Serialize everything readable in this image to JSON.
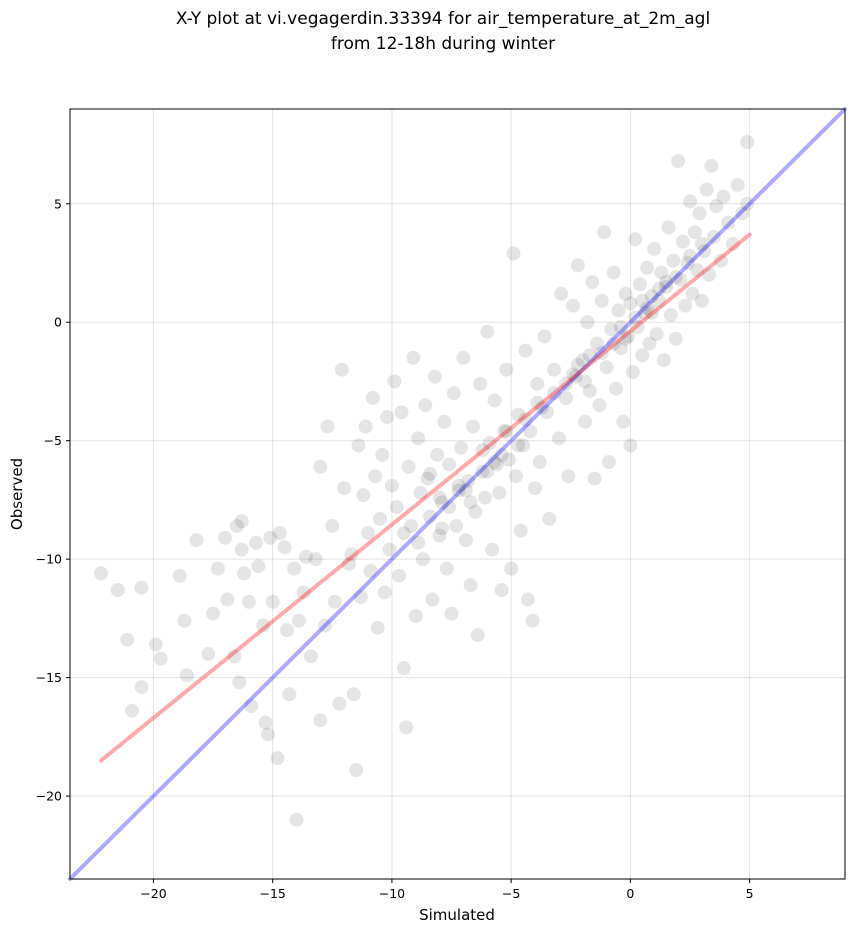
{
  "chart_data": {
    "type": "scatter",
    "title_lines": [
      "X-Y plot at vi.vegagerdin.33394 for air_temperature_at_2m_agl",
      "from 12-18h during winter"
    ],
    "xlabel": "Simulated",
    "ylabel": "Observed",
    "xlim": [
      -23.5,
      9.0
    ],
    "ylim": [
      -23.5,
      9.0
    ],
    "xticks": [
      -20,
      -15,
      -10,
      -5,
      0,
      5
    ],
    "yticks": [
      -20,
      -15,
      -10,
      -5,
      0,
      5
    ],
    "xtick_labels": [
      "−20",
      "−15",
      "−10",
      "−5",
      "0",
      "5"
    ],
    "ytick_labels": [
      "−20",
      "−15",
      "−10",
      "−5",
      "0",
      "5"
    ],
    "grid": true,
    "point_color": "#000000",
    "point_opacity": 0.1,
    "series": [
      {
        "kind": "points",
        "points": [
          [
            -22.2,
            -10.6
          ],
          [
            -21.5,
            -11.3
          ],
          [
            -21.1,
            -13.4
          ],
          [
            -20.9,
            -16.4
          ],
          [
            -20.5,
            -15.4
          ],
          [
            -20.5,
            -11.2
          ],
          [
            -19.9,
            -13.6
          ],
          [
            -19.7,
            -14.2
          ],
          [
            -18.9,
            -10.7
          ],
          [
            -18.7,
            -12.6
          ],
          [
            -18.6,
            -14.9
          ],
          [
            -18.2,
            -9.2
          ],
          [
            -17.7,
            -14.0
          ],
          [
            -17.5,
            -12.3
          ],
          [
            -17.3,
            -10.4
          ],
          [
            -17.0,
            -9.1
          ],
          [
            -16.9,
            -11.7
          ],
          [
            -16.6,
            -14.1
          ],
          [
            -16.5,
            -8.6
          ],
          [
            -16.4,
            -15.2
          ],
          [
            -16.3,
            -8.4
          ],
          [
            -16.3,
            -9.6
          ],
          [
            -16.2,
            -10.6
          ],
          [
            -16.0,
            -11.8
          ],
          [
            -15.9,
            -16.2
          ],
          [
            -15.7,
            -9.3
          ],
          [
            -15.6,
            -10.3
          ],
          [
            -15.4,
            -12.8
          ],
          [
            -15.3,
            -16.9
          ],
          [
            -15.2,
            -17.4
          ],
          [
            -15.1,
            -9.1
          ],
          [
            -15.0,
            -11.8
          ],
          [
            -14.8,
            -18.4
          ],
          [
            -14.7,
            -8.9
          ],
          [
            -14.5,
            -9.5
          ],
          [
            -14.4,
            -13.0
          ],
          [
            -14.3,
            -15.7
          ],
          [
            -14.1,
            -10.4
          ],
          [
            -14.0,
            -21.0
          ],
          [
            -13.9,
            -12.6
          ],
          [
            -13.7,
            -11.4
          ],
          [
            -13.6,
            -9.9
          ],
          [
            -13.4,
            -14.1
          ],
          [
            -13.2,
            -10.0
          ],
          [
            -13.0,
            -6.1
          ],
          [
            -13.0,
            -16.8
          ],
          [
            -12.8,
            -12.8
          ],
          [
            -12.7,
            -4.4
          ],
          [
            -12.5,
            -8.6
          ],
          [
            -12.4,
            -11.8
          ],
          [
            -12.2,
            -16.1
          ],
          [
            -12.1,
            -2.0
          ],
          [
            -12.0,
            -7.0
          ],
          [
            -11.8,
            -10.2
          ],
          [
            -11.7,
            -9.8
          ],
          [
            -11.6,
            -15.7
          ],
          [
            -11.5,
            -18.9
          ],
          [
            -11.4,
            -5.2
          ],
          [
            -11.3,
            -11.6
          ],
          [
            -11.2,
            -7.3
          ],
          [
            -11.1,
            -4.4
          ],
          [
            -11.0,
            -8.9
          ],
          [
            -10.9,
            -10.5
          ],
          [
            -10.8,
            -3.2
          ],
          [
            -10.7,
            -6.5
          ],
          [
            -10.6,
            -12.9
          ],
          [
            -10.5,
            -8.3
          ],
          [
            -10.4,
            -5.6
          ],
          [
            -10.3,
            -11.4
          ],
          [
            -10.2,
            -4.0
          ],
          [
            -10.1,
            -9.6
          ],
          [
            -10.0,
            -6.9
          ],
          [
            -9.9,
            -2.5
          ],
          [
            -9.8,
            -7.8
          ],
          [
            -9.7,
            -10.7
          ],
          [
            -9.6,
            -3.8
          ],
          [
            -9.5,
            -14.6
          ],
          [
            -9.4,
            -17.1
          ],
          [
            -9.3,
            -6.1
          ],
          [
            -9.2,
            -8.6
          ],
          [
            -9.1,
            -1.5
          ],
          [
            -9.0,
            -12.4
          ],
          [
            -8.9,
            -4.9
          ],
          [
            -8.8,
            -7.2
          ],
          [
            -8.7,
            -10.0
          ],
          [
            -8.6,
            -3.5
          ],
          [
            -8.5,
            -6.6
          ],
          [
            -8.4,
            -8.2
          ],
          [
            -8.3,
            -11.7
          ],
          [
            -8.2,
            -2.3
          ],
          [
            -8.1,
            -5.6
          ],
          [
            -8.0,
            -9.0
          ],
          [
            -7.9,
            -7.6
          ],
          [
            -7.8,
            -4.2
          ],
          [
            -7.7,
            -10.4
          ],
          [
            -7.6,
            -6.0
          ],
          [
            -7.5,
            -12.3
          ],
          [
            -7.4,
            -3.0
          ],
          [
            -7.3,
            -8.6
          ],
          [
            -7.2,
            -7.1
          ],
          [
            -7.1,
            -5.3
          ],
          [
            -7.0,
            -1.5
          ],
          [
            -6.9,
            -9.2
          ],
          [
            -6.8,
            -6.7
          ],
          [
            -6.7,
            -11.1
          ],
          [
            -6.6,
            -4.4
          ],
          [
            -6.5,
            -8.0
          ],
          [
            -6.4,
            -13.2
          ],
          [
            -6.3,
            -2.6
          ],
          [
            -6.2,
            -6.3
          ],
          [
            -6.1,
            -7.4
          ],
          [
            -6.0,
            -0.4
          ],
          [
            -5.9,
            -5.1
          ],
          [
            -5.8,
            -9.6
          ],
          [
            -5.7,
            -3.3
          ],
          [
            -5.6,
            -6.0
          ],
          [
            -5.5,
            -7.2
          ],
          [
            -5.4,
            -11.3
          ],
          [
            -5.3,
            -4.6
          ],
          [
            -5.2,
            -2.0
          ],
          [
            -5.1,
            -5.8
          ],
          [
            -5.0,
            -10.4
          ],
          [
            -4.9,
            2.9
          ],
          [
            -4.8,
            -6.5
          ],
          [
            -4.7,
            -3.9
          ],
          [
            -4.6,
            -8.8
          ],
          [
            -4.5,
            -5.2
          ],
          [
            -4.4,
            -1.2
          ],
          [
            -4.3,
            -11.7
          ],
          [
            -4.2,
            -4.6
          ],
          [
            -4.1,
            -12.6
          ],
          [
            -4.0,
            -7.0
          ],
          [
            -3.9,
            -2.6
          ],
          [
            -3.8,
            -5.9
          ],
          [
            -3.6,
            -0.6
          ],
          [
            -3.5,
            -3.8
          ],
          [
            -3.4,
            -8.3
          ],
          [
            -3.2,
            -2.0
          ],
          [
            -3.0,
            -4.9
          ],
          [
            -2.9,
            1.2
          ],
          [
            -2.7,
            -3.2
          ],
          [
            -2.6,
            -6.5
          ],
          [
            -2.4,
            0.7
          ],
          [
            -2.3,
            -2.3
          ],
          [
            -2.2,
            2.4
          ],
          [
            -2.0,
            -1.6
          ],
          [
            -1.9,
            -4.2
          ],
          [
            -1.8,
            0.0
          ],
          [
            -1.7,
            -2.9
          ],
          [
            -1.6,
            1.7
          ],
          [
            -1.5,
            -6.6
          ],
          [
            -1.4,
            -0.9
          ],
          [
            -1.3,
            -3.5
          ],
          [
            -1.2,
            0.9
          ],
          [
            -1.1,
            3.8
          ],
          [
            -1.0,
            -1.9
          ],
          [
            -0.9,
            -5.9
          ],
          [
            -0.8,
            -0.3
          ],
          [
            -0.7,
            2.1
          ],
          [
            -0.6,
            -2.8
          ],
          [
            -0.5,
            0.5
          ],
          [
            -0.4,
            -1.1
          ],
          [
            -0.3,
            -4.2
          ],
          [
            -0.2,
            1.2
          ],
          [
            -0.1,
            -0.6
          ],
          [
            0.0,
            -5.2
          ],
          [
            0.0,
            0.8
          ],
          [
            0.1,
            -2.1
          ],
          [
            0.2,
            3.5
          ],
          [
            0.3,
            -0.2
          ],
          [
            0.4,
            1.6
          ],
          [
            0.5,
            -1.4
          ],
          [
            0.6,
            0.4
          ],
          [
            0.7,
            2.3
          ],
          [
            0.8,
            -0.9
          ],
          [
            0.9,
            1.1
          ],
          [
            1.0,
            3.1
          ],
          [
            1.1,
            -0.5
          ],
          [
            1.2,
            0.9
          ],
          [
            1.3,
            2.1
          ],
          [
            1.4,
            -1.6
          ],
          [
            1.5,
            1.5
          ],
          [
            1.6,
            4.0
          ],
          [
            1.7,
            0.3
          ],
          [
            1.8,
            2.6
          ],
          [
            1.9,
            -0.7
          ],
          [
            2.0,
            6.8
          ],
          [
            2.1,
            1.8
          ],
          [
            2.2,
            3.4
          ],
          [
            2.3,
            0.7
          ],
          [
            2.4,
            2.5
          ],
          [
            2.5,
            5.1
          ],
          [
            2.6,
            1.2
          ],
          [
            2.7,
            3.8
          ],
          [
            2.8,
            2.2
          ],
          [
            2.9,
            4.6
          ],
          [
            3.0,
            0.9
          ],
          [
            3.1,
            3.0
          ],
          [
            3.2,
            5.6
          ],
          [
            3.3,
            2.0
          ],
          [
            3.4,
            6.6
          ],
          [
            3.5,
            3.6
          ],
          [
            3.6,
            4.9
          ],
          [
            3.8,
            2.6
          ],
          [
            3.9,
            5.3
          ],
          [
            4.1,
            4.2
          ],
          [
            4.3,
            3.3
          ],
          [
            4.5,
            5.8
          ],
          [
            4.7,
            4.6
          ],
          [
            4.9,
            5.0
          ],
          [
            4.9,
            7.6
          ],
          [
            -8.4,
            -6.4
          ],
          [
            -7.9,
            -8.7
          ],
          [
            -7.2,
            -6.9
          ],
          [
            -6.7,
            -7.6
          ],
          [
            -6.2,
            -5.4
          ],
          [
            -5.7,
            -5.9
          ],
          [
            -5.2,
            -4.6
          ],
          [
            -4.7,
            -5.2
          ],
          [
            -3.7,
            -3.6
          ],
          [
            -3.2,
            -3.0
          ],
          [
            -2.2,
            -1.8
          ],
          [
            -1.7,
            -1.4
          ],
          [
            -0.7,
            -0.9
          ],
          [
            0.2,
            0.2
          ],
          [
            0.7,
            0.6
          ],
          [
            1.2,
            1.4
          ],
          [
            -7.6,
            -7.8
          ],
          [
            -6.0,
            -6.3
          ],
          [
            -4.4,
            -4.1
          ],
          [
            -2.7,
            -2.6
          ],
          [
            -1.2,
            -1.3
          ],
          [
            -0.4,
            -0.2
          ],
          [
            0.5,
            0.9
          ],
          [
            1.5,
            1.7
          ],
          [
            2.5,
            2.8
          ],
          [
            -9.5,
            -8.9
          ],
          [
            -8.9,
            -9.3
          ],
          [
            -8.0,
            -7.4
          ],
          [
            -6.9,
            -7.1
          ],
          [
            -5.4,
            -5.6
          ],
          [
            -3.9,
            -3.4
          ],
          [
            -2.4,
            -2.2
          ],
          [
            -1.9,
            -2.5
          ],
          [
            -0.2,
            -0.7
          ],
          [
            0.9,
            0.4
          ],
          [
            1.9,
            1.9
          ],
          [
            3.0,
            3.3
          ]
        ]
      },
      {
        "kind": "line",
        "name": "",
        "color": "#0000ff",
        "opacity": 0.33,
        "x": [
          -23.5,
          9.0
        ],
        "y": [
          -23.5,
          9.0
        ]
      },
      {
        "kind": "line",
        "name": "",
        "color": "#ff0000",
        "opacity": 0.33,
        "x": [
          -22.2,
          5.0
        ],
        "y": [
          -18.5,
          3.7
        ]
      }
    ]
  }
}
